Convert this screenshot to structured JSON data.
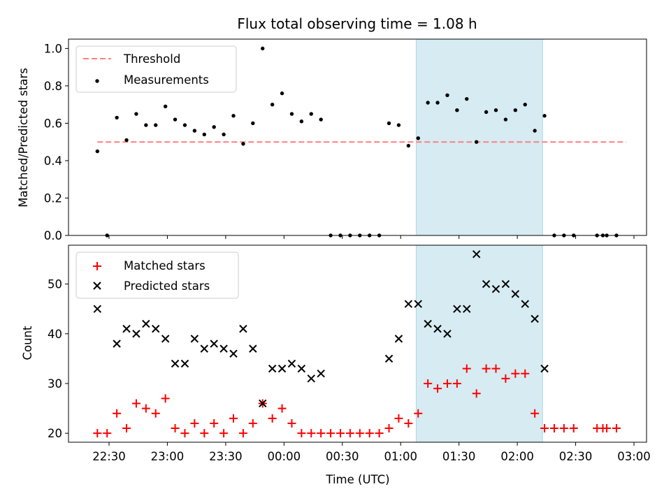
{
  "chart_data": [
    {
      "type": "scatter",
      "title": "Flux total observing time = 1.08 h",
      "ylabel": "Matched/Predicted stars",
      "xlabel": "",
      "ylim": [
        0,
        1.05
      ],
      "yticks": [
        "0.0",
        "0.2",
        "0.4",
        "0.6",
        "0.8",
        "1.0"
      ],
      "grid": false,
      "legend_placement": "upper-left",
      "threshold": {
        "name": "Threshold",
        "value": 0.5,
        "color": "#ff7f7f",
        "x_range": [
          "22:24",
          "02:56"
        ]
      },
      "highlight_span": {
        "x_start": "01:08",
        "x_end": "02:13",
        "color": "#add8e6"
      },
      "series": [
        {
          "name": "Measurements",
          "color": "#000000",
          "x": [
            "22:24",
            "22:29",
            "22:34",
            "22:39",
            "22:44",
            "22:49",
            "22:54",
            "22:59",
            "23:04",
            "23:09",
            "23:14",
            "23:19",
            "23:24",
            "23:29",
            "23:34",
            "23:39",
            "23:44",
            "23:49",
            "23:54",
            "23:59",
            "00:04",
            "00:09",
            "00:14",
            "00:19",
            "00:24",
            "00:29",
            "00:34",
            "00:39",
            "00:44",
            "00:49",
            "00:54",
            "00:59",
            "01:04",
            "01:09",
            "01:14",
            "01:19",
            "01:24",
            "01:29",
            "01:34",
            "01:39",
            "01:44",
            "01:49",
            "01:54",
            "01:59",
            "02:04",
            "02:09",
            "02:14",
            "02:19",
            "02:24",
            "02:29",
            "02:41",
            "02:44",
            "02:46",
            "02:51"
          ],
          "y": [
            0.45,
            0.0,
            0.63,
            0.51,
            0.65,
            0.59,
            0.59,
            0.69,
            0.62,
            0.59,
            0.56,
            0.54,
            0.58,
            0.54,
            0.64,
            0.49,
            0.6,
            1.0,
            0.7,
            0.76,
            0.65,
            0.61,
            0.65,
            0.62,
            0.0,
            0.0,
            0.0,
            0.0,
            0.0,
            0.0,
            0.6,
            0.59,
            0.48,
            0.52,
            0.71,
            0.71,
            0.75,
            0.67,
            0.73,
            0.5,
            0.66,
            0.67,
            0.62,
            0.67,
            0.7,
            0.56,
            0.64,
            0.0,
            0.0,
            0.0,
            0.0,
            0.0,
            0.0,
            0.0
          ]
        }
      ]
    },
    {
      "type": "scatter",
      "title": "",
      "ylabel": "Count",
      "xlabel": "Time (UTC)",
      "ylim": [
        18.2,
        57.8
      ],
      "yticks": [
        "20",
        "30",
        "40",
        "50"
      ],
      "xticks": [
        "22:30",
        "23:00",
        "23:30",
        "00:00",
        "00:30",
        "01:00",
        "01:30",
        "02:00",
        "02:30",
        "03:00"
      ],
      "grid": false,
      "legend_placement": "upper-left",
      "highlight_span": {
        "x_start": "01:08",
        "x_end": "02:13",
        "color": "#add8e6"
      },
      "series": [
        {
          "name": "Matched stars",
          "marker": "plus",
          "color": "#ff0000",
          "x": [
            "22:24",
            "22:29",
            "22:34",
            "22:39",
            "22:44",
            "22:49",
            "22:54",
            "22:59",
            "23:04",
            "23:09",
            "23:14",
            "23:19",
            "23:24",
            "23:29",
            "23:34",
            "23:39",
            "23:44",
            "23:49",
            "23:54",
            "23:59",
            "00:04",
            "00:09",
            "00:14",
            "00:19",
            "00:24",
            "00:29",
            "00:34",
            "00:39",
            "00:44",
            "00:49",
            "00:54",
            "00:59",
            "01:04",
            "01:09",
            "01:14",
            "01:19",
            "01:24",
            "01:29",
            "01:34",
            "01:39",
            "01:44",
            "01:49",
            "01:54",
            "01:59",
            "02:04",
            "02:09",
            "02:14",
            "02:19",
            "02:24",
            "02:29",
            "02:41",
            "02:44",
            "02:46",
            "02:51"
          ],
          "y": [
            20,
            20,
            24,
            21,
            26,
            25,
            24,
            27,
            21,
            20,
            22,
            20,
            22,
            20,
            23,
            20,
            22,
            26,
            23,
            25,
            22,
            20,
            20,
            20,
            20,
            20,
            20,
            20,
            20,
            20,
            21,
            23,
            22,
            24,
            30,
            29,
            30,
            30,
            33,
            28,
            33,
            33,
            31,
            32,
            32,
            24,
            21,
            21,
            21,
            21,
            21,
            21,
            21,
            21
          ]
        },
        {
          "name": "Predicted stars",
          "marker": "x",
          "color": "#000000",
          "x": [
            "22:24",
            "22:34",
            "22:39",
            "22:44",
            "22:49",
            "22:54",
            "22:59",
            "23:04",
            "23:09",
            "23:14",
            "23:19",
            "23:24",
            "23:29",
            "23:34",
            "23:39",
            "23:44",
            "23:49",
            "23:54",
            "23:59",
            "00:04",
            "00:09",
            "00:14",
            "00:19",
            "00:54",
            "00:59",
            "01:04",
            "01:09",
            "01:14",
            "01:19",
            "01:24",
            "01:29",
            "01:34",
            "01:39",
            "01:44",
            "01:49",
            "01:54",
            "01:59",
            "02:04",
            "02:09",
            "02:14"
          ],
          "y": [
            45,
            38,
            41,
            40,
            42,
            41,
            39,
            34,
            34,
            39,
            37,
            38,
            37,
            36,
            41,
            37,
            26,
            33,
            33,
            34,
            33,
            31,
            32,
            35,
            39,
            46,
            46,
            42,
            41,
            40,
            45,
            45,
            56,
            50,
            49,
            50,
            48,
            46,
            43,
            33
          ]
        }
      ]
    }
  ]
}
